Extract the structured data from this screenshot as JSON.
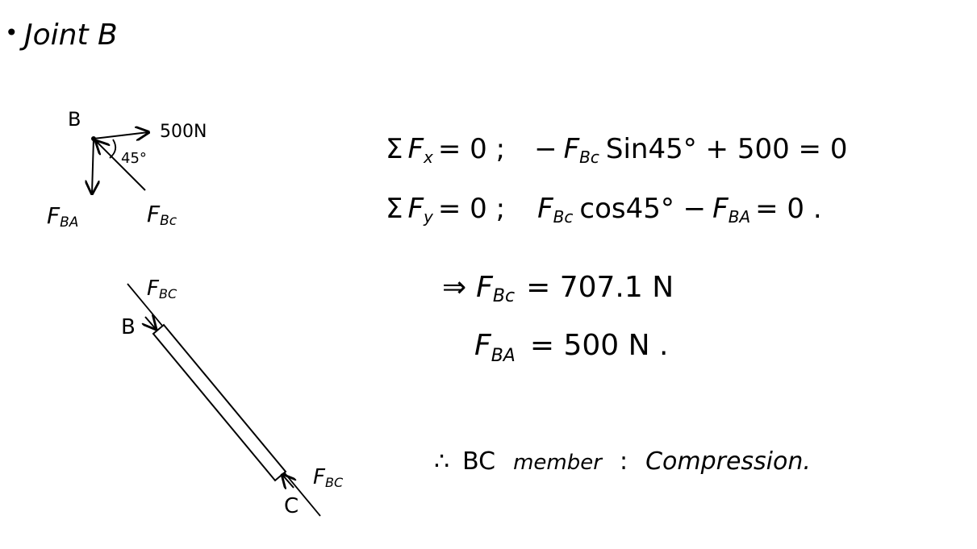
{
  "heading": {
    "bullet": "•",
    "text": "Joint B"
  },
  "fbd": {
    "joint_label": "B",
    "applied_force": "500N",
    "angle": "45°",
    "force_ba": {
      "main": "F",
      "sub": "BA"
    },
    "force_bc": {
      "main": "F",
      "sub": "Bc"
    }
  },
  "member": {
    "end_top": "B",
    "end_bottom": "C",
    "force_top": {
      "main": "F",
      "sub": "BC"
    },
    "force_bottom": {
      "main": "F",
      "sub": "BC"
    }
  },
  "equations": {
    "eq1": {
      "lhs_sym": "Σ",
      "lhs_f": "F",
      "lhs_sub": "x",
      "lhs_rest": "= 0 ;",
      "rhs_pre": "−",
      "rhs_f": "F",
      "rhs_sub": "Bc",
      "rhs_rest": "Sin45° + 500 = 0"
    },
    "eq2": {
      "lhs_sym": "Σ",
      "lhs_f": "F",
      "lhs_sub": "y",
      "lhs_rest": "= 0 ;",
      "rhs_f": "F",
      "rhs_sub": "Bc",
      "rhs_mid": "cos45° −",
      "rhs_f2": "F",
      "rhs_sub2": "BA",
      "rhs_rest": "= 0 ."
    },
    "res1": {
      "arrow": "⇒",
      "f": "F",
      "sub": "Bc",
      "rest": "= 707.1 N"
    },
    "res2": {
      "f": "F",
      "sub": "BA",
      "rest": "= 500 N ."
    }
  },
  "conclusion": {
    "therefore": "∴",
    "member": "BC",
    "member_word": "member",
    "colon": ":",
    "result": "Compression."
  }
}
